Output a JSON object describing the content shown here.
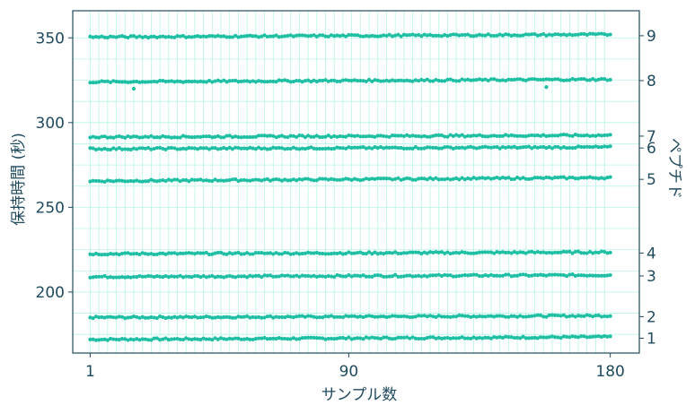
{
  "chart_data": {
    "type": "scatter",
    "xlabel": "サンプル数",
    "ylabel": "保持時間 (秒)",
    "y2label": "ペプチド",
    "xlim": [
      -5,
      190
    ],
    "ylim": [
      164,
      366
    ],
    "x_ticks": [
      1,
      90,
      180
    ],
    "y_ticks": [
      200,
      250,
      300,
      350
    ],
    "x_range": [
      1,
      180
    ],
    "grid": true,
    "point_color": "#1fbfa4",
    "grid_color": "#b8f5e6",
    "frame_color": "#1f4a5e",
    "series": [
      {
        "name": "1",
        "start": 172.0,
        "end": 173.5
      },
      {
        "name": "2",
        "start": 185.0,
        "end": 186.0
      },
      {
        "name": "3",
        "start": 209.0,
        "end": 210.0
      },
      {
        "name": "4",
        "start": 222.5,
        "end": 223.5
      },
      {
        "name": "5",
        "start": 265.5,
        "end": 267.5
      },
      {
        "name": "6",
        "start": 284.5,
        "end": 285.5
      },
      {
        "name": "7",
        "start": 291.5,
        "end": 292.5
      },
      {
        "name": "8",
        "start": 324.0,
        "end": 325.5,
        "outliers": [
          [
            16,
            320.0
          ],
          [
            158,
            321.0
          ]
        ]
      },
      {
        "name": "9",
        "start": 350.5,
        "end": 352.0
      }
    ]
  }
}
